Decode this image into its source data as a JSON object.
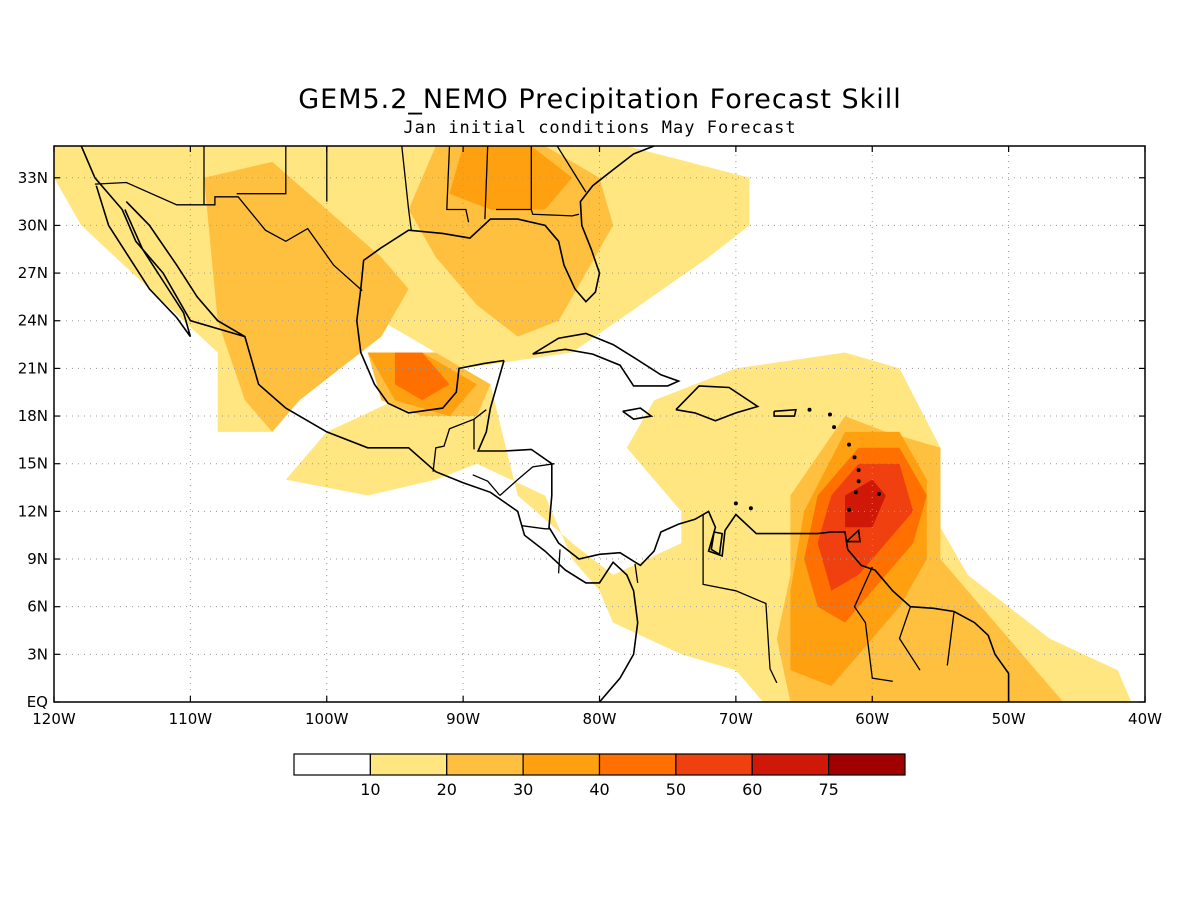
{
  "title": "GEM5.2_NEMO Precipitation Forecast Skill",
  "subtitle": "Jan initial conditions   May Forecast",
  "lat_labels": [
    "EQ",
    "3N",
    "6N",
    "9N",
    "12N",
    "15N",
    "18N",
    "21N",
    "24N",
    "27N",
    "30N",
    "33N"
  ],
  "lon_labels": [
    "120W",
    "110W",
    "100W",
    "90W",
    "80W",
    "70W",
    "60W",
    "50W",
    "40W"
  ],
  "lat_values": [
    0,
    3,
    6,
    9,
    12,
    15,
    18,
    21,
    24,
    27,
    30,
    33
  ],
  "lon_values": [
    -120,
    -110,
    -100,
    -90,
    -80,
    -70,
    -60,
    -50,
    -40
  ],
  "extent": {
    "lon": [
      -120,
      -40
    ],
    "lat": [
      0,
      35
    ]
  },
  "colorbar": {
    "labels": [
      "10",
      "20",
      "30",
      "40",
      "50",
      "60",
      "75"
    ],
    "colors": [
      "#ffffff",
      "#ffe680",
      "#ffc040",
      "#ffa010",
      "#ff7000",
      "#f04010",
      "#d01808",
      "#a00000"
    ]
  },
  "skill_regions": [
    {
      "level": 1,
      "color": "#ffe680",
      "points": [
        [
          -120,
          35
        ],
        [
          -90,
          35
        ],
        [
          -78,
          35
        ],
        [
          -69,
          33
        ],
        [
          -69,
          30
        ],
        [
          -72,
          28
        ],
        [
          -77,
          25
        ],
        [
          -82,
          22
        ],
        [
          -90,
          21
        ],
        [
          -95,
          19
        ],
        [
          -100,
          17
        ],
        [
          -103,
          14
        ],
        [
          -97,
          13
        ],
        [
          -92,
          14
        ],
        [
          -89,
          15
        ],
        [
          -84,
          13
        ],
        [
          -82,
          9
        ],
        [
          -80,
          7
        ],
        [
          -79,
          5
        ],
        [
          -74,
          3
        ],
        [
          -70,
          2
        ],
        [
          -68,
          0
        ],
        [
          -41,
          0
        ],
        [
          -42,
          2
        ],
        [
          -47,
          4
        ],
        [
          -50,
          6
        ],
        [
          -53,
          8
        ],
        [
          -55,
          11
        ],
        [
          -55,
          16
        ],
        [
          -58,
          21
        ],
        [
          -62,
          22
        ],
        [
          -70,
          21
        ],
        [
          -76,
          19
        ],
        [
          -78,
          16
        ],
        [
          -74,
          12
        ],
        [
          -74,
          10
        ],
        [
          -79,
          8
        ],
        [
          -82,
          10
        ],
        [
          -86,
          13
        ],
        [
          -88,
          20
        ],
        [
          -94,
          23
        ],
        [
          -98,
          25
        ],
        [
          -104,
          17
        ],
        [
          -108,
          17
        ],
        [
          -108,
          22
        ],
        [
          -113,
          26
        ],
        [
          -118,
          30
        ],
        [
          -120,
          33
        ]
      ]
    },
    {
      "level": 2,
      "color": "#ffc040",
      "points": [
        [
          -109,
          33
        ],
        [
          -104,
          34
        ],
        [
          -100,
          31
        ],
        [
          -96,
          28
        ],
        [
          -94,
          26
        ],
        [
          -96,
          23
        ],
        [
          -99,
          21
        ],
        [
          -102,
          19
        ],
        [
          -104,
          17
        ],
        [
          -106,
          19
        ],
        [
          -108,
          24
        ]
      ]
    },
    {
      "level": 2,
      "color": "#ffc040",
      "points": [
        [
          -92,
          35
        ],
        [
          -84,
          35
        ],
        [
          -80,
          33
        ],
        [
          -79,
          30
        ],
        [
          -81,
          27
        ],
        [
          -83,
          24
        ],
        [
          -86,
          23
        ],
        [
          -89,
          25
        ],
        [
          -92,
          28
        ],
        [
          -94,
          31
        ]
      ]
    },
    {
      "level": 2,
      "color": "#ffc040",
      "points": [
        [
          -97,
          22
        ],
        [
          -92,
          22
        ],
        [
          -88,
          20
        ],
        [
          -89,
          18
        ],
        [
          -93,
          18
        ],
        [
          -96,
          19
        ]
      ]
    },
    {
      "level": 2,
      "color": "#ffc040",
      "points": [
        [
          -66,
          13
        ],
        [
          -62,
          18
        ],
        [
          -59,
          17
        ],
        [
          -55,
          16
        ],
        [
          -55,
          9
        ],
        [
          -52,
          6
        ],
        [
          -48,
          2
        ],
        [
          -46,
          0
        ],
        [
          -66,
          0
        ],
        [
          -67,
          4
        ],
        [
          -66,
          8
        ]
      ]
    },
    {
      "level": 3,
      "color": "#ffa010",
      "points": [
        [
          -65,
          12
        ],
        [
          -62,
          17
        ],
        [
          -58,
          17
        ],
        [
          -56,
          14
        ],
        [
          -56,
          9
        ],
        [
          -58,
          6
        ],
        [
          -60,
          4
        ],
        [
          -63,
          1
        ],
        [
          -66,
          2
        ],
        [
          -66,
          7
        ]
      ]
    },
    {
      "level": 3,
      "color": "#ffa010",
      "points": [
        [
          -97,
          22
        ],
        [
          -93,
          22
        ],
        [
          -89,
          20
        ],
        [
          -91,
          18
        ],
        [
          -95,
          19
        ]
      ]
    },
    {
      "level": 3,
      "color": "#ffa010",
      "points": [
        [
          -90,
          35
        ],
        [
          -85,
          35
        ],
        [
          -82,
          33
        ],
        [
          -84,
          31
        ],
        [
          -88,
          31
        ],
        [
          -91,
          32
        ]
      ]
    },
    {
      "level": 4,
      "color": "#ff7000",
      "points": [
        [
          -64,
          13
        ],
        [
          -61,
          16
        ],
        [
          -58,
          16
        ],
        [
          -56,
          13
        ],
        [
          -57,
          10
        ],
        [
          -60,
          7
        ],
        [
          -62,
          5
        ],
        [
          -64,
          6
        ],
        [
          -65,
          9
        ]
      ]
    },
    {
      "level": 4,
      "color": "#ff7000",
      "points": [
        [
          -95,
          22
        ],
        [
          -93,
          22
        ],
        [
          -91,
          20
        ],
        [
          -93,
          19
        ],
        [
          -95,
          20
        ]
      ]
    },
    {
      "level": 5,
      "color": "#f04010",
      "points": [
        [
          -63,
          13
        ],
        [
          -61,
          15
        ],
        [
          -58,
          15
        ],
        [
          -57,
          12
        ],
        [
          -59,
          10
        ],
        [
          -61,
          8
        ],
        [
          -63,
          7
        ],
        [
          -64,
          10
        ]
      ]
    },
    {
      "level": 6,
      "color": "#d01808",
      "points": [
        [
          -62,
          13
        ],
        [
          -60,
          14
        ],
        [
          -59,
          13
        ],
        [
          -60,
          11
        ],
        [
          -62,
          11
        ]
      ]
    }
  ]
}
